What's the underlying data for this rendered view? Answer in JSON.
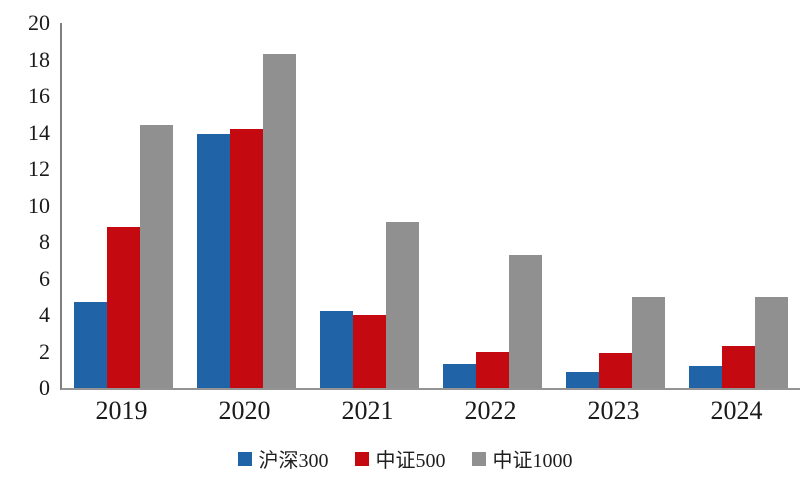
{
  "chart_data": {
    "type": "bar",
    "title": "",
    "xlabel": "",
    "ylabel": "",
    "categories": [
      "2019",
      "2020",
      "2021",
      "2022",
      "2023",
      "2024"
    ],
    "series": [
      {
        "name": "沪深300",
        "color": "#2063A6",
        "values": [
          4.7,
          13.9,
          4.2,
          1.3,
          0.9,
          1.2
        ]
      },
      {
        "name": "中证500",
        "color": "#C50911",
        "values": [
          8.8,
          14.2,
          4.0,
          2.0,
          1.9,
          2.3
        ]
      },
      {
        "name": "中证1000",
        "color": "#909090",
        "values": [
          14.4,
          18.3,
          9.1,
          7.3,
          5.0,
          5.0
        ]
      }
    ],
    "ylim": [
      0,
      20
    ],
    "yticks": [
      0,
      2,
      4,
      6,
      8,
      10,
      12,
      14,
      16,
      18,
      20
    ],
    "grid": false,
    "legend_position": "bottom",
    "axis_color_y": "#7f7f7f",
    "axis_color_x": "#949494",
    "tick_label_color": "#1a1a1a"
  }
}
